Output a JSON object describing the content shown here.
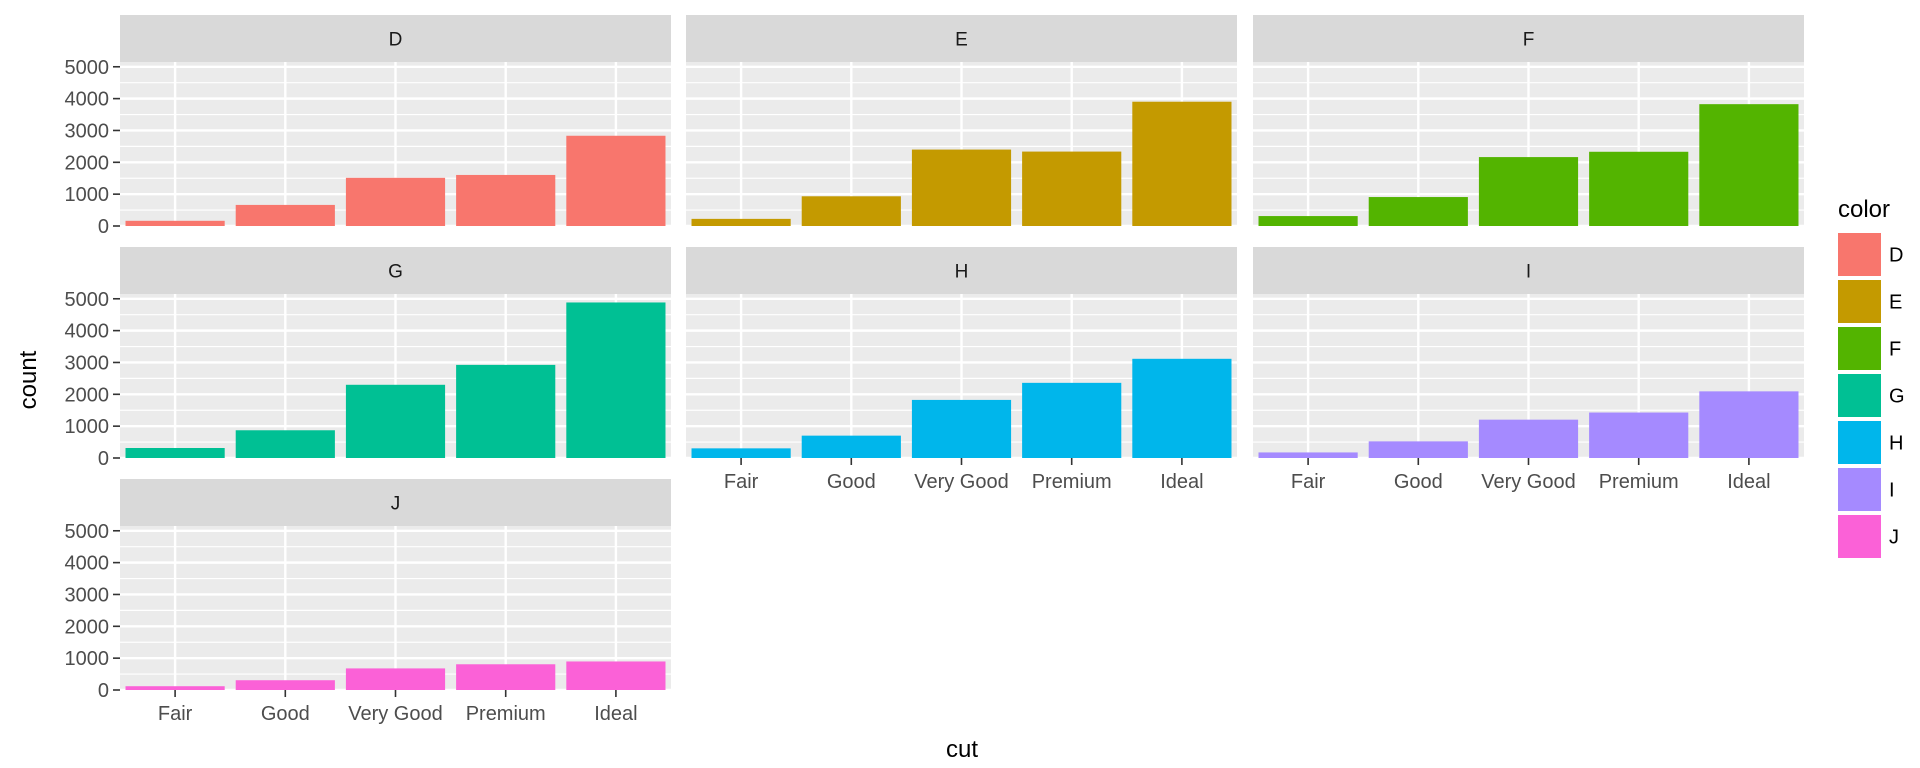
{
  "chart_data": {
    "type": "bar",
    "facet_by": "color",
    "xlabel": "cut",
    "ylabel": "count",
    "categories": [
      "Fair",
      "Good",
      "Very Good",
      "Premium",
      "Ideal"
    ],
    "y_ticks": [
      0,
      1000,
      2000,
      3000,
      4000,
      5000
    ],
    "ylim": [
      0,
      5150
    ],
    "grid": true,
    "panels": [
      {
        "name": "D",
        "color": "#F8766D",
        "values": [
          163,
          662,
          1513,
          1603,
          2834
        ]
      },
      {
        "name": "E",
        "color": "#C49A00",
        "values": [
          224,
          933,
          2400,
          2337,
          3903
        ]
      },
      {
        "name": "F",
        "color": "#53B400",
        "values": [
          312,
          909,
          2164,
          2331,
          3826
        ]
      },
      {
        "name": "G",
        "color": "#00C094",
        "values": [
          314,
          871,
          2299,
          2924,
          4884
        ]
      },
      {
        "name": "H",
        "color": "#00B6EB",
        "values": [
          303,
          702,
          1824,
          2360,
          3115
        ]
      },
      {
        "name": "I",
        "color": "#A58AFF",
        "values": [
          175,
          522,
          1204,
          1428,
          2093
        ]
      },
      {
        "name": "J",
        "color": "#FB61D7",
        "values": [
          119,
          307,
          678,
          808,
          896
        ]
      }
    ],
    "legend": {
      "title": "color",
      "position": "right",
      "items": [
        {
          "label": "D",
          "color": "#F8766D"
        },
        {
          "label": "E",
          "color": "#C49A00"
        },
        {
          "label": "F",
          "color": "#53B400"
        },
        {
          "label": "G",
          "color": "#00C094"
        },
        {
          "label": "H",
          "color": "#00B6EB"
        },
        {
          "label": "I",
          "color": "#A58AFF"
        },
        {
          "label": "J",
          "color": "#FB61D7"
        }
      ]
    }
  }
}
